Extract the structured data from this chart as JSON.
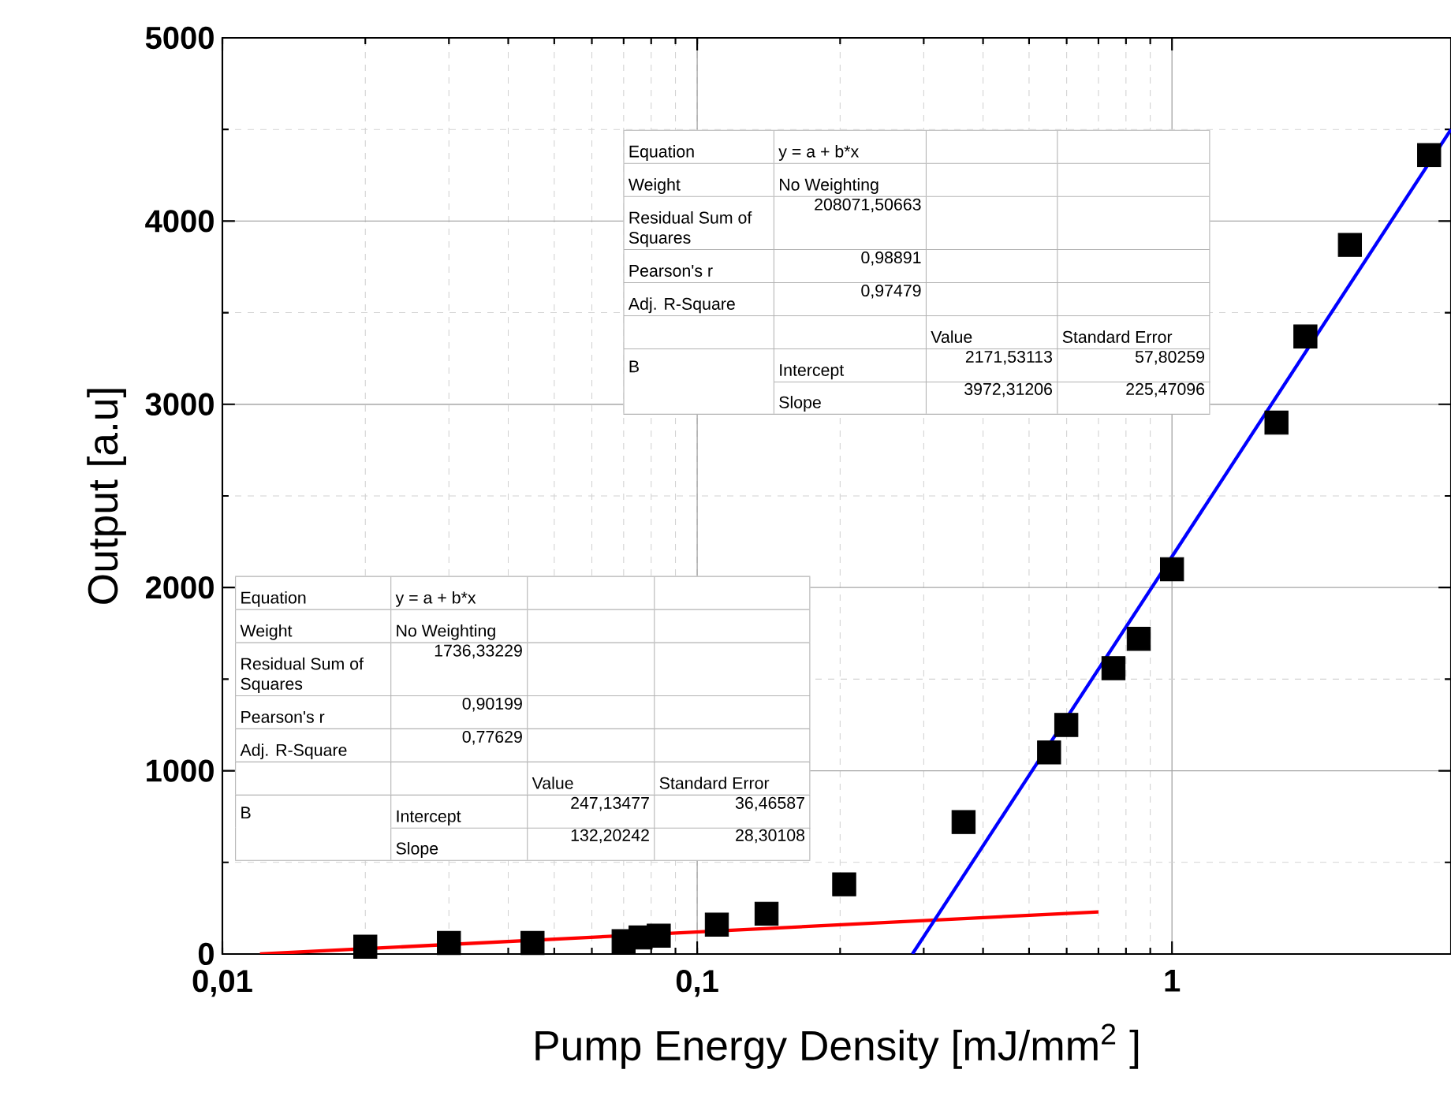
{
  "chart_data": {
    "type": "scatter",
    "xlabel": "Pump  Energy Density [mJ/mm$^{2}$ ]",
    "ylabel": "Output [a.u]",
    "log": "x",
    "grid": true,
    "xlim": [
      0.01,
      3.87
    ],
    "ylim": [
      0,
      5000
    ],
    "xticks": [
      {
        "value": 0.01,
        "label": "0,01"
      },
      {
        "value": 0.1,
        "label": "0,1"
      },
      {
        "value": 1,
        "label": "1"
      }
    ],
    "yticks": [
      0,
      1000,
      2000,
      3000,
      4000,
      5000
    ],
    "series": [
      {
        "color": "#000000",
        "marker": "square",
        "x": [
          0.02,
          0.03,
          0.045,
          0.07,
          0.076,
          0.083,
          0.11,
          0.14,
          0.204,
          0.364,
          0.551,
          0.599,
          0.753,
          0.851,
          1.0,
          1.66,
          1.91,
          2.37,
          3.48
        ],
        "values": [
          40,
          60,
          60,
          70,
          90,
          100,
          160,
          220,
          380,
          720,
          1100,
          1250,
          1560,
          1720,
          2100,
          2900,
          3370,
          3870,
          4360
        ]
      },
      {
        "type": "line",
        "color": "#ff0000",
        "marker": "none",
        "x": [
          0.012,
          0.7
        ],
        "values": [
          0,
          230
        ]
      },
      {
        "type": "line",
        "color": "#0000ff",
        "marker": "none",
        "x": [
          0.284,
          3.87
        ],
        "values": [
          0,
          4500
        ]
      }
    ],
    "annotations": [
      "Equation",
      "y = a + b*x",
      "Weight",
      "No Weighting",
      "Residual Sum of Squares",
      "208071,50663",
      "Pearson's r",
      "0,98891",
      "Adj. R-Square",
      "0,97479",
      "Value",
      "Standard Error",
      "B",
      "Intercept",
      "2171,53113",
      "57,80259",
      "Slope",
      "3972,31206",
      "225,47096",
      "Equation",
      "y = a + b*x",
      "Weight",
      "No Weighting",
      "Residual Sum of Squares",
      "1736,33229",
      "Pearson's r",
      "0,90199",
      "Adj. R-Square",
      "0,77629",
      "Value",
      "Standard Error",
      "B",
      "Intercept",
      "247,13477",
      "36,46587",
      "Slope",
      "132,20242",
      "28,30108"
    ]
  }
}
